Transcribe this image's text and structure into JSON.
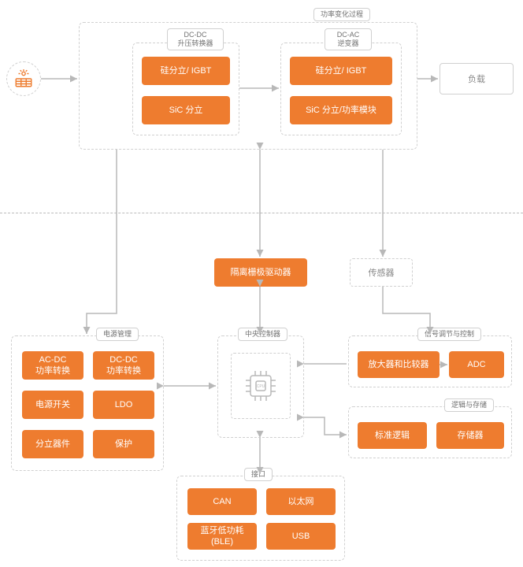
{
  "colors": {
    "orange": "#ee7c2f",
    "border": "#d0d0d0",
    "text_gray": "#888888",
    "connector": "#b8b8b8",
    "icon_orange": "#ee7c2f"
  },
  "labels": {
    "power_change": "功率变化过程",
    "dcdc_conv": "DC-DC\n升压转换器",
    "dcac_inv": "DC-AC\n逆变器",
    "load": "负载",
    "power_mgmt": "电源管理",
    "central_ctrl": "中央控制器",
    "signal_cond": "信号调节与控制",
    "logic_storage": "逻辑与存储",
    "interface": "接口",
    "sensor": "传感器"
  },
  "blocks": {
    "si_igbt_1": "硅分立/ IGBT",
    "sic_1": "SiC 分立",
    "si_igbt_2": "硅分立/ IGBT",
    "sic_2": "SiC 分立/功率模块",
    "iso_gate": "隔离栅极驱动器",
    "acdc": "AC-DC\n功率转换",
    "dcdc_pm": "DC-DC\n功率转换",
    "psw": "电源开关",
    "ldo": "LDO",
    "discrete": "分立器件",
    "protect": "保护",
    "amp": "放大器和比较器",
    "adc": "ADC",
    "std_logic": "标准逻辑",
    "memory": "存储器",
    "can": "CAN",
    "eth": "以太网",
    "ble": "蓝牙低功耗\n(BLE)",
    "usb": "USB"
  }
}
